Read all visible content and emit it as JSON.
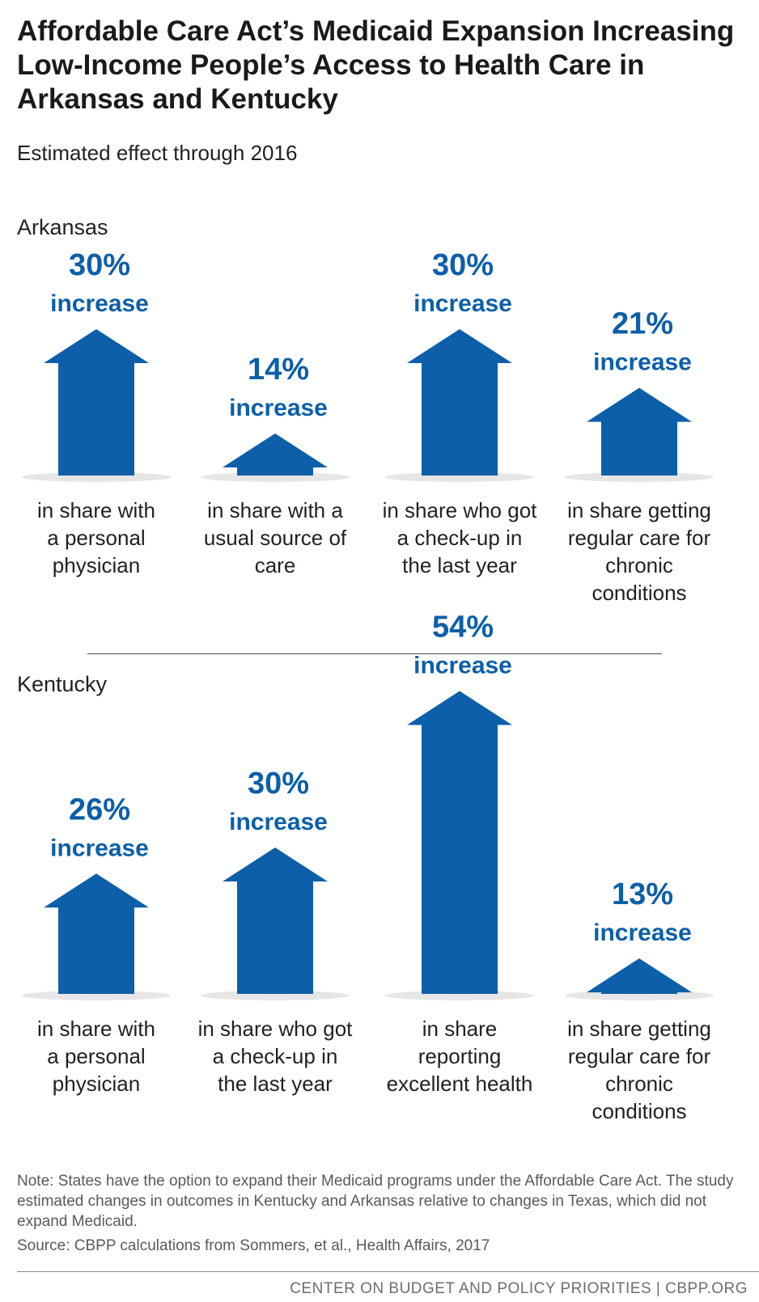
{
  "title": "Affordable Care Act’s Medicaid Expansion Increasing Low-Income People’s Access to Health Care in Arkansas and Kentucky",
  "subtitle": "Estimated effect through 2016",
  "note": "Note: States have the option to expand their Medicaid programs under the Affordable Care Act. The study estimated changes in outcomes in Kentucky and Arkansas relative to changes in Texas, which did not expand Medicaid.",
  "source": "Source: CBPP calculations from Sommers, et al., Health Affairs, 2017",
  "footer": "CENTER ON BUDGET AND POLICY PRIORITIES | CBPP.ORG",
  "colors": {
    "arrow": "#0c5fa8",
    "value_text": "#0c5fa8",
    "shadow": "#e6e6e6"
  },
  "chart_data": [
    {
      "type": "bar",
      "title": "Arkansas",
      "unit": "% increase",
      "ylim": [
        0,
        54
      ],
      "categories": [
        [
          "in share with",
          "a personal",
          "physician"
        ],
        [
          "in share with a",
          "usual source of",
          "care"
        ],
        [
          "in share who got",
          "a check-up in",
          "the last year"
        ],
        [
          "in share getting",
          "regular care for",
          "chronic",
          "conditions"
        ]
      ],
      "values": [
        30,
        14,
        30,
        21
      ],
      "value_labels": [
        "30%",
        "14%",
        "30%",
        "21%"
      ],
      "value_suffix": "increase"
    },
    {
      "type": "bar",
      "title": "Kentucky",
      "unit": "% increase",
      "ylim": [
        0,
        54
      ],
      "categories": [
        [
          "in share with",
          "a personal",
          "physician"
        ],
        [
          "in share who got",
          "a check-up in",
          "the last year"
        ],
        [
          "in share",
          "reporting",
          "excellent health"
        ],
        [
          "in share getting",
          "regular care for",
          "chronic",
          "conditions"
        ]
      ],
      "values": [
        26,
        30,
        54,
        13
      ],
      "value_labels": [
        "26%",
        "30%",
        "54%",
        "13%"
      ],
      "value_suffix": "increase"
    }
  ]
}
